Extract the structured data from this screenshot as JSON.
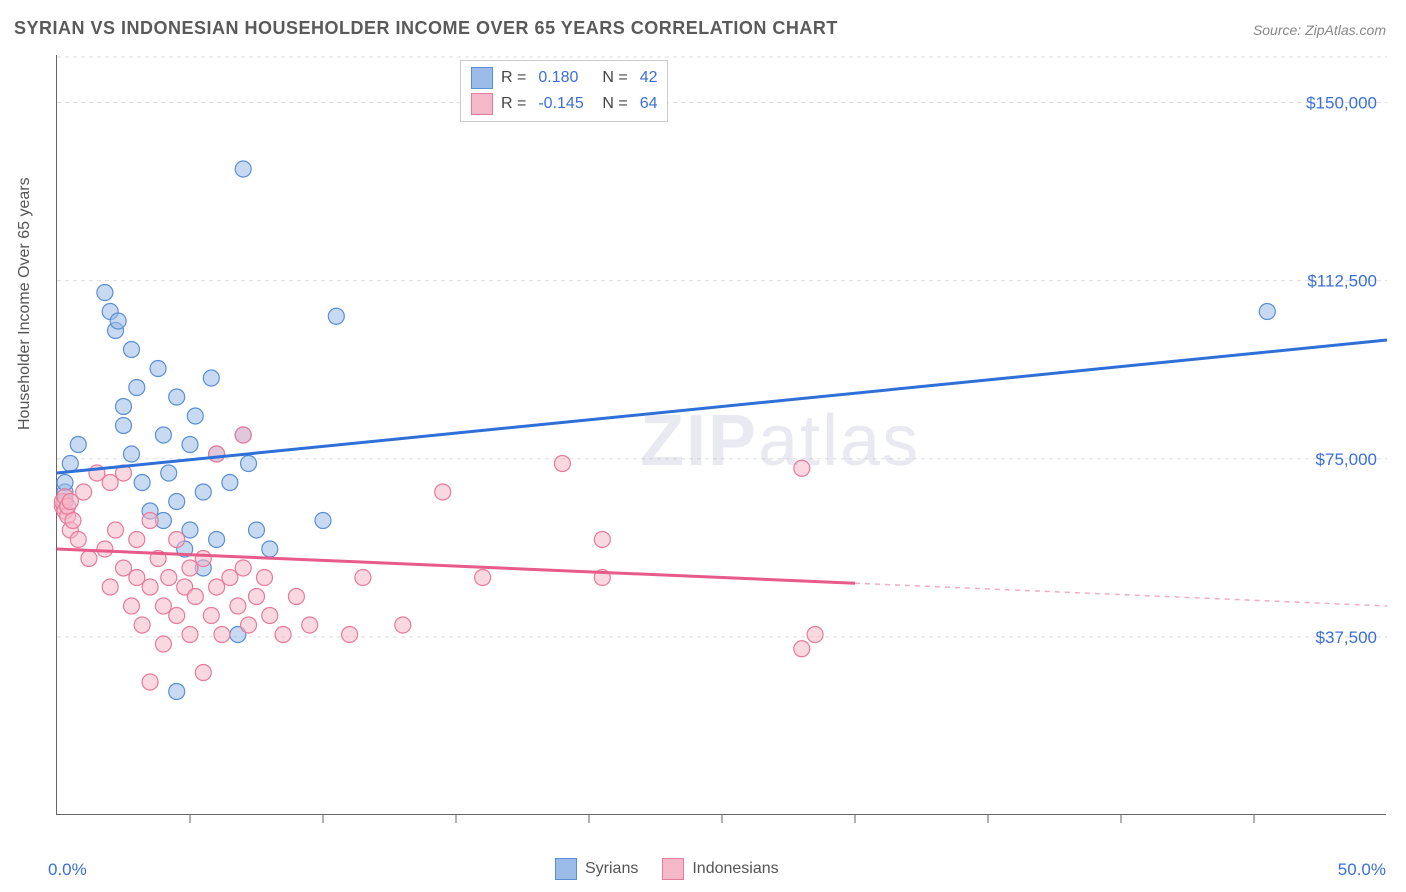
{
  "title": "SYRIAN VS INDONESIAN HOUSEHOLDER INCOME OVER 65 YEARS CORRELATION CHART",
  "source": "Source: ZipAtlas.com",
  "watermark": "ZIPatlas",
  "chart": {
    "type": "scatter",
    "xlim": [
      0,
      50
    ],
    "ylim": [
      0,
      160000
    ],
    "x_left_label": "0.0%",
    "x_right_label": "50.0%",
    "y_axis_title": "Householder Income Over 65 years",
    "y_ticks": [
      {
        "value": 37500,
        "label": "$37,500"
      },
      {
        "value": 75000,
        "label": "$75,000"
      },
      {
        "value": 112500,
        "label": "$112,500"
      },
      {
        "value": 150000,
        "label": "$150,000"
      }
    ],
    "x_tick_positions": [
      5,
      10,
      15,
      20,
      25,
      30,
      35,
      40,
      45
    ],
    "grid_color": "#dddddd",
    "background_color": "#ffffff",
    "marker_radius": 8,
    "marker_opacity": 0.55,
    "series": [
      {
        "name": "Syrians",
        "color_fill": "#9bbce8",
        "color_stroke": "#5a8fd6",
        "R": "0.180",
        "N": "42",
        "trend": {
          "x1": 0,
          "y1": 72000,
          "x2": 50,
          "y2": 100000,
          "solid_until_x": 50,
          "color": "#2e6fd8",
          "width": 3
        },
        "points": [
          [
            0.3,
            66000
          ],
          [
            0.3,
            68000
          ],
          [
            0.3,
            70000
          ],
          [
            0.5,
            74000
          ],
          [
            0.8,
            78000
          ],
          [
            1.8,
            110000
          ],
          [
            2.0,
            106000
          ],
          [
            2.2,
            102000
          ],
          [
            2.3,
            104000
          ],
          [
            2.5,
            82000
          ],
          [
            2.5,
            86000
          ],
          [
            2.8,
            98000
          ],
          [
            2.8,
            76000
          ],
          [
            3.0,
            90000
          ],
          [
            3.2,
            70000
          ],
          [
            3.5,
            64000
          ],
          [
            3.8,
            94000
          ],
          [
            4.0,
            80000
          ],
          [
            4.0,
            62000
          ],
          [
            4.2,
            72000
          ],
          [
            4.5,
            88000
          ],
          [
            4.5,
            66000
          ],
          [
            4.8,
            56000
          ],
          [
            5.0,
            78000
          ],
          [
            5.0,
            60000
          ],
          [
            5.2,
            84000
          ],
          [
            5.5,
            68000
          ],
          [
            5.5,
            52000
          ],
          [
            5.8,
            92000
          ],
          [
            6.0,
            76000
          ],
          [
            6.0,
            58000
          ],
          [
            4.5,
            26000
          ],
          [
            6.5,
            70000
          ],
          [
            6.8,
            38000
          ],
          [
            7.0,
            80000
          ],
          [
            7.2,
            74000
          ],
          [
            7.5,
            60000
          ],
          [
            7.0,
            136000
          ],
          [
            8.0,
            56000
          ],
          [
            10.5,
            105000
          ],
          [
            10.0,
            62000
          ],
          [
            45.5,
            106000
          ]
        ]
      },
      {
        "name": "Indonesians",
        "color_fill": "#f5b8c8",
        "color_stroke": "#e87a9a",
        "R": "-0.145",
        "N": "64",
        "trend": {
          "x1": 0,
          "y1": 56000,
          "x2": 50,
          "y2": 44000,
          "solid_until_x": 30,
          "color": "#e85a8a",
          "width": 3
        },
        "points": [
          [
            0.2,
            65000
          ],
          [
            0.2,
            66000
          ],
          [
            0.3,
            64000
          ],
          [
            0.3,
            67000
          ],
          [
            0.4,
            63000
          ],
          [
            0.4,
            65000
          ],
          [
            0.5,
            66000
          ],
          [
            0.5,
            60000
          ],
          [
            0.6,
            62000
          ],
          [
            0.8,
            58000
          ],
          [
            1.0,
            68000
          ],
          [
            1.2,
            54000
          ],
          [
            1.5,
            72000
          ],
          [
            1.8,
            56000
          ],
          [
            2.0,
            70000
          ],
          [
            2.0,
            48000
          ],
          [
            2.2,
            60000
          ],
          [
            2.5,
            52000
          ],
          [
            2.5,
            72000
          ],
          [
            2.8,
            44000
          ],
          [
            3.0,
            58000
          ],
          [
            3.0,
            50000
          ],
          [
            3.2,
            40000
          ],
          [
            3.5,
            62000
          ],
          [
            3.5,
            48000
          ],
          [
            3.8,
            54000
          ],
          [
            4.0,
            44000
          ],
          [
            4.0,
            36000
          ],
          [
            4.2,
            50000
          ],
          [
            4.5,
            58000
          ],
          [
            4.5,
            42000
          ],
          [
            4.8,
            48000
          ],
          [
            5.0,
            52000
          ],
          [
            5.0,
            38000
          ],
          [
            5.2,
            46000
          ],
          [
            5.5,
            30000
          ],
          [
            5.5,
            54000
          ],
          [
            5.8,
            42000
          ],
          [
            6.0,
            76000
          ],
          [
            6.0,
            48000
          ],
          [
            6.2,
            38000
          ],
          [
            6.5,
            50000
          ],
          [
            6.8,
            44000
          ],
          [
            7.0,
            80000
          ],
          [
            7.0,
            52000
          ],
          [
            7.2,
            40000
          ],
          [
            7.5,
            46000
          ],
          [
            7.8,
            50000
          ],
          [
            8.0,
            42000
          ],
          [
            8.5,
            38000
          ],
          [
            9.0,
            46000
          ],
          [
            9.5,
            40000
          ],
          [
            3.5,
            28000
          ],
          [
            11.0,
            38000
          ],
          [
            11.5,
            50000
          ],
          [
            13.0,
            40000
          ],
          [
            14.5,
            68000
          ],
          [
            16.0,
            50000
          ],
          [
            19.0,
            74000
          ],
          [
            20.5,
            58000
          ],
          [
            20.5,
            50000
          ],
          [
            28.0,
            73000
          ],
          [
            28.0,
            35000
          ],
          [
            28.5,
            38000
          ]
        ]
      }
    ]
  },
  "legend_top": {
    "r_label": "R =",
    "n_label": "N ="
  },
  "legend_bottom": [
    {
      "label": "Syrians",
      "fill": "#9bbce8",
      "stroke": "#5a8fd6"
    },
    {
      "label": "Indonesians",
      "fill": "#f5b8c8",
      "stroke": "#e87a9a"
    }
  ]
}
